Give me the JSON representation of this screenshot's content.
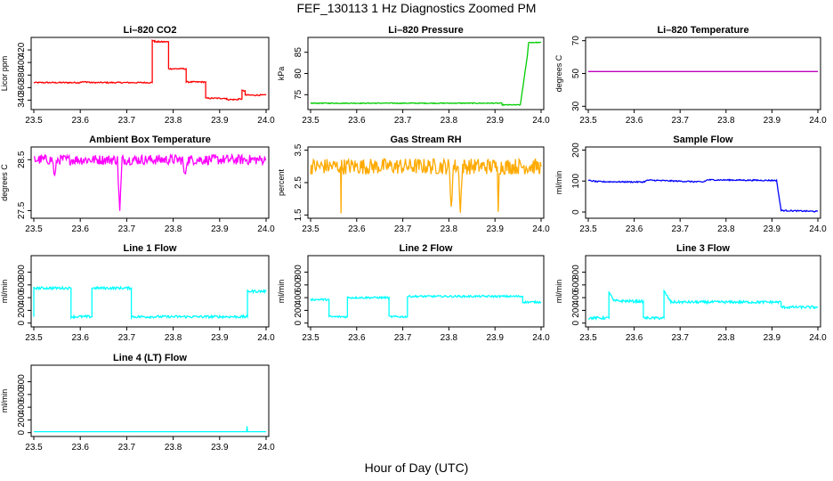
{
  "figure": {
    "title": "FEF_130113  1 Hz Diagnostics Zoomed PM",
    "xlabel": "Hour of Day (UTC)"
  },
  "chart_data": [
    {
      "type": "line",
      "title": "Li–820 CO2",
      "ylabel": "Licor ppm",
      "color": "#ff0000",
      "xlim": [
        23.5,
        24.0
      ],
      "ylim": [
        325,
        440
      ],
      "xticks": [
        23.5,
        23.6,
        23.7,
        23.8,
        23.9,
        24.0
      ],
      "yticks": [
        340,
        360,
        380,
        400,
        420
      ],
      "noise": 1,
      "x": [
        23.5,
        23.6,
        23.6,
        23.62,
        23.62,
        23.755,
        23.755,
        23.76,
        23.76,
        23.79,
        23.79,
        23.828,
        23.828,
        23.87,
        23.87,
        23.915,
        23.915,
        23.94,
        23.94,
        23.948,
        23.948,
        23.955,
        23.955,
        24.0
      ],
      "y": [
        368,
        368,
        369,
        369,
        368,
        368,
        435,
        435,
        433,
        433,
        390,
        390,
        369,
        369,
        343,
        343,
        341,
        341,
        342,
        342,
        355,
        355,
        348,
        348
      ]
    },
    {
      "type": "line",
      "title": "Li–820 Pressure",
      "ylabel": "kPa",
      "color": "#00cc00",
      "xlim": [
        23.5,
        24.0
      ],
      "ylim": [
        71.5,
        88.5
      ],
      "xticks": [
        23.5,
        23.6,
        23.7,
        23.8,
        23.9,
        24.0
      ],
      "yticks": [
        75,
        80,
        85
      ],
      "noise": 0.1,
      "x": [
        23.5,
        23.915,
        23.915,
        23.955,
        23.97,
        23.973,
        24.0
      ],
      "y": [
        73.0,
        73.0,
        72.6,
        72.6,
        84.0,
        87.3,
        87.3
      ]
    },
    {
      "type": "line",
      "title": "Li–820 Temperature",
      "ylabel": "degrees C",
      "color": "#c000c0",
      "xlim": [
        23.5,
        24.0
      ],
      "ylim": [
        28,
        72
      ],
      "xticks": [
        23.5,
        23.6,
        23.7,
        23.8,
        23.9,
        24.0
      ],
      "yticks": [
        30,
        50,
        70
      ],
      "noise": 0,
      "x": [
        23.5,
        24.0
      ],
      "y": [
        51.2,
        51.2
      ]
    },
    {
      "type": "line",
      "title": "Ambient Box Temperature",
      "ylabel": "degrees C",
      "color": "#ff00ff",
      "xlim": [
        23.5,
        24.0
      ],
      "ylim": [
        27.35,
        28.75
      ],
      "xticks": [
        23.5,
        23.6,
        23.7,
        23.8,
        23.9,
        24.0
      ],
      "yticks": [
        27.5,
        28.5
      ],
      "noise": 0.1,
      "x": [
        23.5,
        23.54,
        23.545,
        23.55,
        23.68,
        23.685,
        23.69,
        23.82,
        23.825,
        23.83,
        24.0
      ],
      "y": [
        28.5,
        28.5,
        28.15,
        28.5,
        28.5,
        27.45,
        28.5,
        28.5,
        28.15,
        28.5,
        28.5
      ]
    },
    {
      "type": "line",
      "title": "Gas Stream RH",
      "ylabel": "percent",
      "color": "#ffaa00",
      "xlim": [
        23.5,
        24.0
      ],
      "ylim": [
        1.4,
        3.6
      ],
      "xticks": [
        23.5,
        23.6,
        23.7,
        23.8,
        23.9,
        24.0
      ],
      "yticks": [
        1.5,
        2.5,
        3.5
      ],
      "noise": 0.25,
      "x": [
        23.5,
        23.565,
        23.566,
        23.567,
        23.8,
        23.805,
        23.81,
        23.82,
        23.825,
        23.83,
        23.905,
        23.907,
        23.909,
        24.0
      ],
      "y": [
        3.0,
        3.0,
        1.55,
        3.0,
        3.0,
        1.85,
        3.0,
        3.0,
        1.75,
        3.0,
        3.0,
        1.6,
        3.0,
        3.0
      ]
    },
    {
      "type": "line",
      "title": "Sample Flow",
      "ylabel": "ml/min",
      "color": "#0000ff",
      "xlim": [
        23.5,
        24.0
      ],
      "ylim": [
        -20,
        210
      ],
      "xticks": [
        23.5,
        23.6,
        23.7,
        23.8,
        23.9,
        24.0
      ],
      "yticks": [
        0,
        100,
        200
      ],
      "noise": 2,
      "x": [
        23.5,
        23.52,
        23.62,
        23.63,
        23.75,
        23.76,
        23.91,
        23.92,
        24.0
      ],
      "y": [
        102,
        98,
        97,
        103,
        97,
        104,
        102,
        5,
        2
      ]
    },
    {
      "type": "line",
      "title": "Line 1 Flow",
      "ylabel": "ml/min",
      "color": "#00ffff",
      "xlim": [
        23.5,
        24.0
      ],
      "ylim": [
        -60,
        1060
      ],
      "xticks": [
        23.5,
        23.6,
        23.7,
        23.8,
        23.9,
        24.0
      ],
      "yticks": [
        0,
        200,
        400,
        600,
        800
      ],
      "noise": 20,
      "x": [
        23.5,
        23.5,
        23.58,
        23.58,
        23.625,
        23.625,
        23.71,
        23.71,
        23.96,
        23.96,
        24.0
      ],
      "y": [
        100,
        550,
        550,
        100,
        100,
        550,
        550,
        100,
        100,
        500,
        500
      ]
    },
    {
      "type": "line",
      "title": "Line 2 Flow",
      "ylabel": "ml/min",
      "color": "#00ffff",
      "xlim": [
        23.5,
        24.0
      ],
      "ylim": [
        -60,
        1060
      ],
      "xticks": [
        23.5,
        23.6,
        23.7,
        23.8,
        23.9,
        24.0
      ],
      "yticks": [
        0,
        200,
        400,
        600,
        800
      ],
      "noise": 15,
      "x": [
        23.5,
        23.54,
        23.54,
        23.58,
        23.58,
        23.67,
        23.67,
        23.71,
        23.71,
        23.96,
        23.96,
        24.0
      ],
      "y": [
        370,
        370,
        100,
        100,
        400,
        400,
        100,
        100,
        420,
        420,
        330,
        330
      ]
    },
    {
      "type": "line",
      "title": "Line 3 Flow",
      "ylabel": "ml/min",
      "color": "#00ffff",
      "xlim": [
        23.5,
        24.0
      ],
      "ylim": [
        -60,
        1060
      ],
      "xticks": [
        23.5,
        23.6,
        23.7,
        23.8,
        23.9,
        24.0
      ],
      "yticks": [
        0,
        200,
        400,
        600,
        800
      ],
      "noise": 20,
      "x": [
        23.5,
        23.545,
        23.545,
        23.555,
        23.62,
        23.62,
        23.665,
        23.665,
        23.68,
        23.92,
        23.92,
        24.0
      ],
      "y": [
        80,
        80,
        500,
        350,
        340,
        80,
        80,
        500,
        330,
        330,
        250,
        250
      ]
    },
    {
      "type": "line",
      "title": "Line 4 (LT) Flow",
      "ylabel": "ml/min",
      "color": "#00ffff",
      "xlim": [
        23.5,
        24.0
      ],
      "ylim": [
        -60,
        1060
      ],
      "xticks": [
        23.5,
        23.6,
        23.7,
        23.8,
        23.9,
        24.0
      ],
      "yticks": [
        0,
        200,
        400,
        600,
        800
      ],
      "noise": 0,
      "x": [
        23.5,
        23.958,
        23.959,
        23.96,
        24.0
      ],
      "y": [
        15,
        15,
        100,
        15,
        15
      ]
    }
  ]
}
